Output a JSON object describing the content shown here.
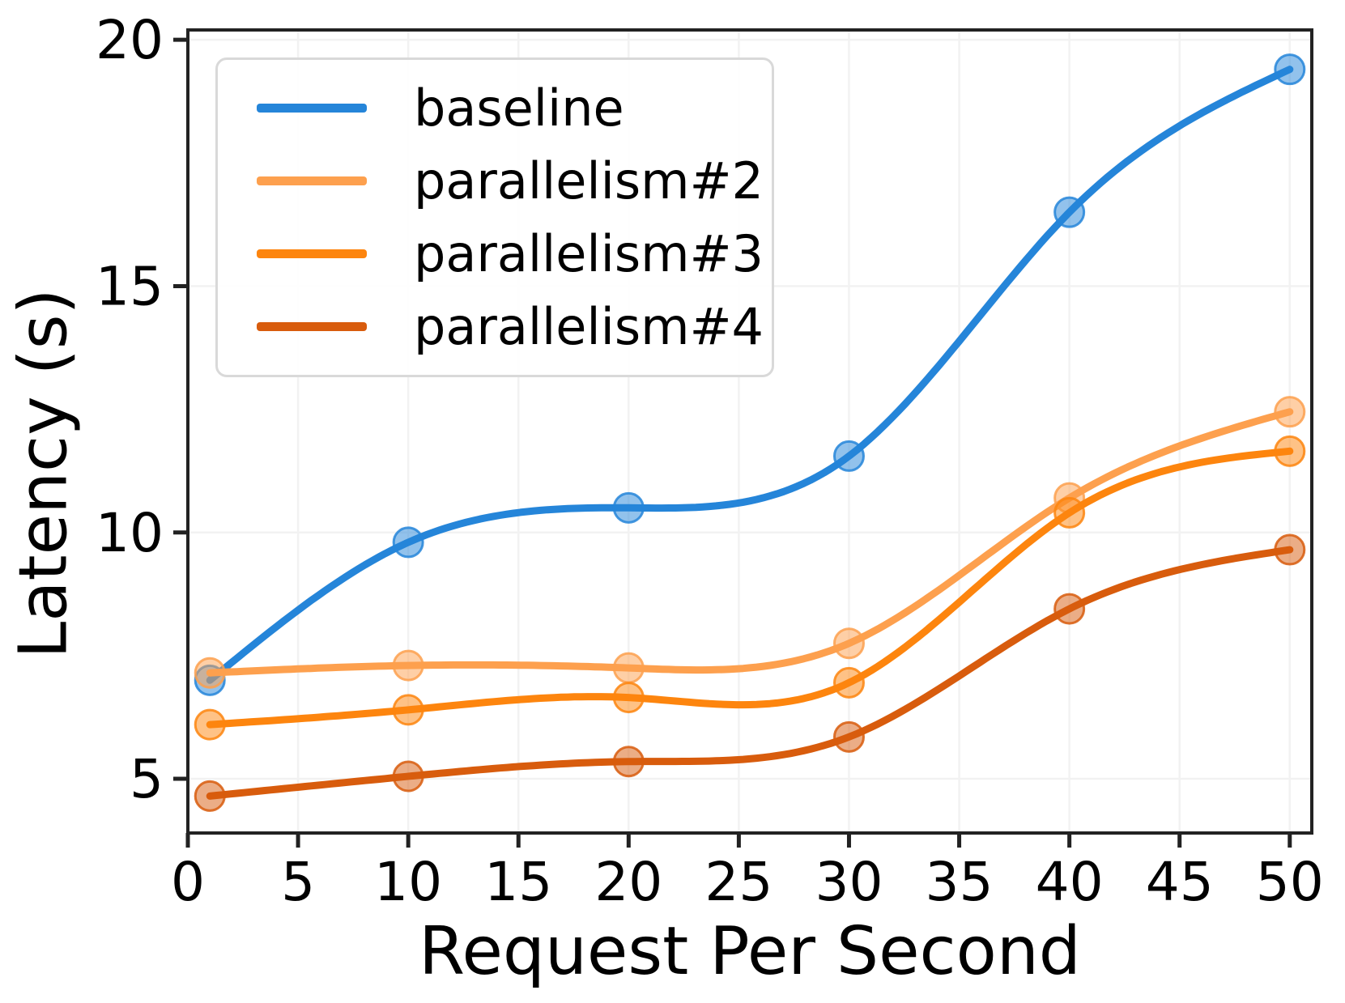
{
  "chart_data": {
    "type": "line",
    "title": "",
    "xlabel": "Request Per Second",
    "ylabel": "Latency (s)",
    "x": [
      1,
      10,
      20,
      30,
      40,
      50
    ],
    "series": [
      {
        "name": "baseline",
        "color": "#2585d9",
        "values": [
          7.0,
          9.8,
          10.5,
          11.55,
          16.5,
          19.4
        ]
      },
      {
        "name": "parallelism#2",
        "color": "#fda04e",
        "values": [
          7.15,
          7.3,
          7.25,
          7.75,
          10.7,
          12.45
        ]
      },
      {
        "name": "parallelism#3",
        "color": "#fd850e",
        "values": [
          6.1,
          6.4,
          6.65,
          6.95,
          10.4,
          11.65
        ]
      },
      {
        "name": "parallelism#4",
        "color": "#d85c0d",
        "values": [
          4.65,
          5.05,
          5.35,
          5.85,
          8.45,
          9.65
        ]
      }
    ],
    "xticks": [
      0,
      5,
      10,
      15,
      20,
      25,
      30,
      35,
      40,
      45,
      50
    ],
    "yticks": [
      5,
      10,
      15,
      20
    ],
    "xlim": [
      0,
      51
    ],
    "ylim": [
      3.9,
      20.2
    ],
    "grid": true,
    "legend_position": "upper-left",
    "line_smoothing": "cubic-spline",
    "marker": "circle"
  },
  "styles": {
    "text_color": "#000000",
    "spine_color": "#222222",
    "grid_color": "#f2f2f2",
    "legend_border_color": "#d9d9d9",
    "background": "#ffffff"
  }
}
